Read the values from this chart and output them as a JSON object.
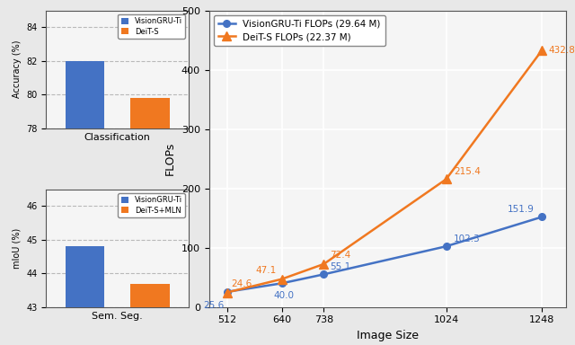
{
  "bar_accuracy": {
    "categories": [
      "VisionGRU-Ti",
      "DeiT-S"
    ],
    "values": [
      82.0,
      79.8
    ],
    "colors": [
      "#4472c4",
      "#f07820"
    ],
    "ylabel": "Accuracy (%)",
    "xlabel": "Classification",
    "ylim": [
      78,
      85
    ],
    "yticks": [
      78,
      80,
      82,
      84
    ],
    "legend_labels": [
      "VisionGRU-Ti",
      "DeiT-S"
    ]
  },
  "bar_miou": {
    "categories": [
      "VisionGRU-Ti",
      "DeiT-S+MLN"
    ],
    "values": [
      44.8,
      43.7
    ],
    "colors": [
      "#4472c4",
      "#f07820"
    ],
    "ylabel": "mIoU (%)",
    "xlabel": "Sem. Seg.",
    "ylim": [
      43,
      46.5
    ],
    "yticks": [
      43,
      44,
      45,
      46
    ],
    "legend_labels": [
      "VisionGRU-Ti",
      "DeiT-S+MLN"
    ]
  },
  "line_flops": {
    "image_sizes": [
      512,
      640,
      738,
      1024,
      1248
    ],
    "visiongru_flops": [
      25.6,
      40.0,
      55.1,
      102.3,
      151.9
    ],
    "deit_flops": [
      24.6,
      47.1,
      72.4,
      215.4,
      432.8
    ],
    "visiongru_color": "#4472c4",
    "deit_color": "#f07820",
    "ylabel": "FLOPs",
    "xlabel": "Image Size",
    "ylim": [
      0,
      500
    ],
    "yticks": [
      0,
      100,
      200,
      300,
      400,
      500
    ],
    "legend_visiongru": "VisionGRU-Ti FLOPs (29.64 M)",
    "legend_deit": "DeiT-S FLOPs (22.37 M)"
  },
  "fig_bg": "#e8e8e8",
  "ax_bg": "#f5f5f5"
}
